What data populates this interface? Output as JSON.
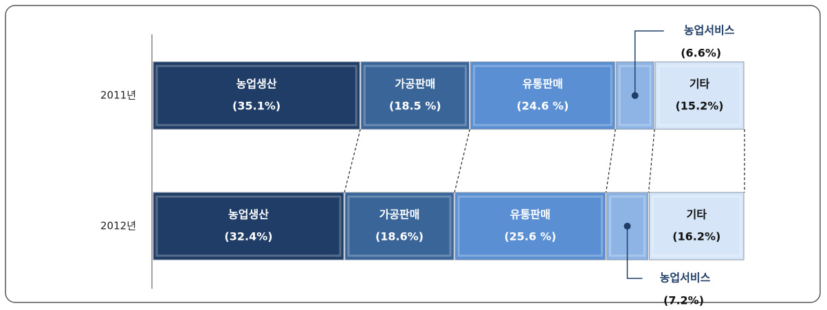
{
  "chart_data": {
    "type": "stacked-bar-horizontal",
    "categories": [
      "2011년",
      "2012년"
    ],
    "series": [
      {
        "name": "농업생산",
        "color": "#1f3d66",
        "values": [
          35.1,
          32.4
        ],
        "value_labels": [
          "(35.1%)",
          "(32.4%)"
        ]
      },
      {
        "name": "가공판매",
        "color": "#3a6598",
        "values": [
          18.5,
          18.6
        ],
        "value_labels": [
          "(18.5 %)",
          "(18.6%)"
        ]
      },
      {
        "name": "유통판매",
        "color": "#5a8fd3",
        "values": [
          24.6,
          25.6
        ],
        "value_labels": [
          "(24.6 %)",
          "(25.6 %)"
        ]
      },
      {
        "name": "농업서비스",
        "color": "#8db4e5",
        "values": [
          6.6,
          7.2
        ],
        "value_labels": [
          "(6.6%)",
          "(7.2%)"
        ]
      },
      {
        "name": "기타",
        "color": "#d6e6f8",
        "values": [
          15.2,
          16.2
        ],
        "value_labels": [
          "(15.2%)",
          "(16.2%)"
        ]
      }
    ]
  }
}
